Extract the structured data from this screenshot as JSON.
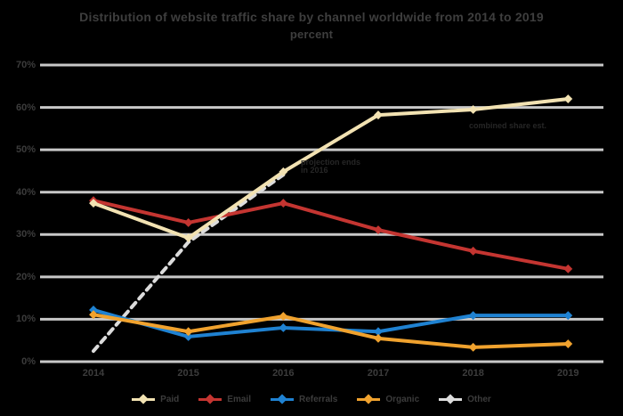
{
  "title": {
    "line1": "Distribution of website traffic share by channel worldwide from 2014 to 2019",
    "line2": "percent"
  },
  "colors": {
    "background": "#000000",
    "gridline": "#d9d9d9",
    "axis_text": "#3c3c3c",
    "annotation_text": "#262626"
  },
  "y_axis": {
    "tick_labels_top_down": [
      "70%",
      "60%",
      "50%",
      "40%",
      "30%",
      "20%",
      "10%",
      "0%"
    ]
  },
  "annotations": [
    {
      "lines": [
        "projection ends",
        "in 2016"
      ]
    },
    {
      "lines": [
        "combined share est."
      ]
    }
  ],
  "chart_data": {
    "type": "line",
    "title": "Distribution of website traffic share by channel worldwide from 2014 to 2019",
    "subtitle": "percent",
    "xlabel": "",
    "ylabel": "percent",
    "ylim": [
      0,
      70
    ],
    "y_tick_step": 10,
    "grid": true,
    "legend_position": "bottom",
    "categories": [
      "2014",
      "2015",
      "2016",
      "2017",
      "2018",
      "2019"
    ],
    "series": [
      {
        "name": "Paid",
        "color": "#f2e2b2",
        "dashed": false,
        "markers": true,
        "values": [
          37.4,
          29.2,
          44.8,
          58.2,
          59.5,
          62.0
        ]
      },
      {
        "name": "Email",
        "color": "#c43531",
        "dashed": false,
        "markers": true,
        "values": [
          38.0,
          32.8,
          37.4,
          31.1,
          26.1,
          21.9
        ]
      },
      {
        "name": "Referrals",
        "color": "#1f82d2",
        "dashed": false,
        "markers": true,
        "values": [
          12.2,
          5.9,
          8.0,
          7.1,
          10.9,
          10.9
        ]
      },
      {
        "name": "Organic",
        "color": "#f0a22e",
        "dashed": false,
        "markers": true,
        "values": [
          11.1,
          7.1,
          10.7,
          5.5,
          3.4,
          4.2
        ]
      },
      {
        "name": "Other",
        "color": "#dcdcdc",
        "dashed": true,
        "markers": false,
        "values": [
          2.5,
          28.2,
          44.1,
          null,
          null,
          null
        ]
      }
    ],
    "draw_order_bottom_to_top": [
      "Other",
      "Referrals",
      "Organic",
      "Email",
      "Paid"
    ]
  }
}
